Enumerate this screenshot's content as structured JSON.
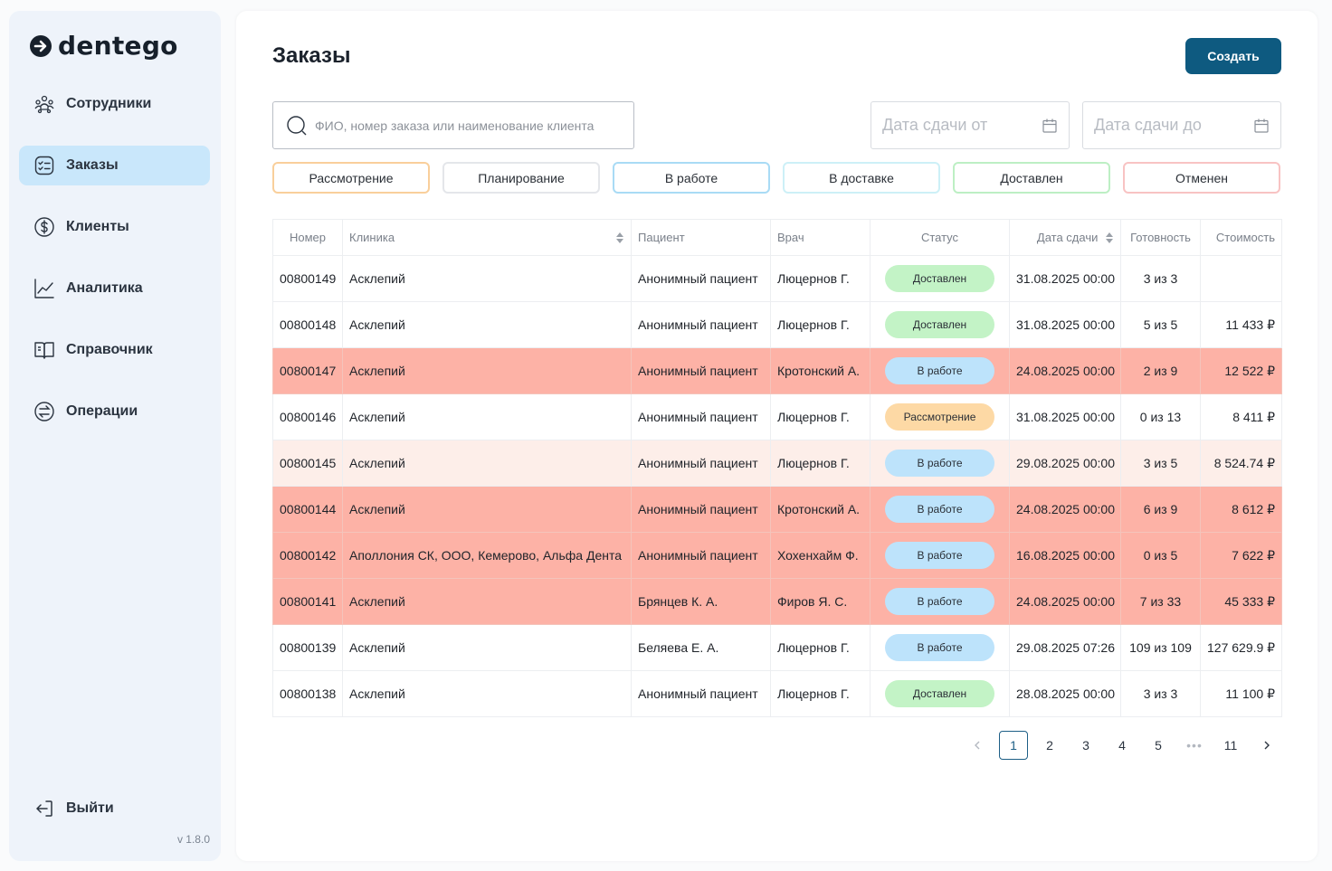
{
  "sidebar": {
    "logo_text": "dentego",
    "items": [
      {
        "label": "Сотрудники",
        "icon": "users-icon",
        "active": false
      },
      {
        "label": "Заказы",
        "icon": "checklist-icon",
        "active": true
      },
      {
        "label": "Клиенты",
        "icon": "dollar-icon",
        "active": false
      },
      {
        "label": "Аналитика",
        "icon": "chart-line-icon",
        "active": false
      },
      {
        "label": "Справочник",
        "icon": "book-icon",
        "active": false
      },
      {
        "label": "Операции",
        "icon": "operations-icon",
        "active": false
      }
    ],
    "logout_label": "Выйти",
    "version": "v 1.8.0"
  },
  "header": {
    "title": "Заказы",
    "create_label": "Создать"
  },
  "search": {
    "placeholder": "ФИО, номер заказа или наименование клиента",
    "value": ""
  },
  "dates": {
    "from_placeholder": "Дата сдачи от",
    "to_placeholder": "Дата сдачи до"
  },
  "filters": [
    {
      "label": "Рассмотрение",
      "color": "#f9cf9b"
    },
    {
      "label": "Планирование",
      "color": "#e4e6ea"
    },
    {
      "label": "В работе",
      "color": "#a9dbf5"
    },
    {
      "label": "В доставке",
      "color": "#cdf0f7"
    },
    {
      "label": "Доставлен",
      "color": "#bdefc4"
    },
    {
      "label": "Отменен",
      "color": "#f8c3c3"
    }
  ],
  "table": {
    "columns": [
      "Номер",
      "Клиника",
      "Пациент",
      "Врач",
      "Статус",
      "Дата сдачи",
      "Готовность",
      "Стоимость"
    ],
    "rows": [
      {
        "number": "00800149",
        "clinic": "Асклепий",
        "patient": "Анонимный пациент",
        "doctor": "Люцернов Г.",
        "status": "Доставлен",
        "date": "31.08.2025 00:00",
        "readiness": "3 из 3",
        "cost": "",
        "highlight": "white"
      },
      {
        "number": "00800148",
        "clinic": "Асклепий",
        "patient": "Анонимный пациент",
        "doctor": "Люцернов Г.",
        "status": "Доставлен",
        "date": "31.08.2025 00:00",
        "readiness": "5 из 5",
        "cost": "11 433 ₽",
        "highlight": "white"
      },
      {
        "number": "00800147",
        "clinic": "Асклепий",
        "patient": "Анонимный пациент",
        "doctor": "Кротонский А.",
        "status": "В работе",
        "date": "24.08.2025 00:00",
        "readiness": "2 из 9",
        "cost": "12 522 ₽",
        "highlight": "red"
      },
      {
        "number": "00800146",
        "clinic": "Асклепий",
        "patient": "Анонимный пациент",
        "doctor": "Люцернов Г.",
        "status": "Рассмотрение",
        "date": "31.08.2025 00:00",
        "readiness": "0 из 13",
        "cost": "8 411 ₽",
        "highlight": "white"
      },
      {
        "number": "00800145",
        "clinic": "Асклепий",
        "patient": "Анонимный пациент",
        "doctor": "Люцернов Г.",
        "status": "В работе",
        "date": "29.08.2025 00:00",
        "readiness": "3 из 5",
        "cost": "8 524.74 ₽",
        "highlight": "pink"
      },
      {
        "number": "00800144",
        "clinic": "Асклепий",
        "patient": "Анонимный пациент",
        "doctor": "Кротонский А.",
        "status": "В работе",
        "date": "24.08.2025 00:00",
        "readiness": "6 из 9",
        "cost": "8 612 ₽",
        "highlight": "red"
      },
      {
        "number": "00800142",
        "clinic": "Аполлония СК, ООО, Кемерово, Альфа Дента",
        "patient": "Анонимный пациент",
        "doctor": "Хохенхайм Ф.",
        "status": "В работе",
        "date": "16.08.2025 00:00",
        "readiness": "0 из 5",
        "cost": "7 622 ₽",
        "highlight": "red"
      },
      {
        "number": "00800141",
        "clinic": "Асклепий",
        "patient": "Брянцев К. А.",
        "doctor": "Фиров Я. С.",
        "status": "В работе",
        "date": "24.08.2025 00:00",
        "readiness": "7 из 33",
        "cost": "45 333 ₽",
        "highlight": "red"
      },
      {
        "number": "00800139",
        "clinic": "Асклепий",
        "patient": "Беляева Е. А.",
        "doctor": "Люцернов Г.",
        "status": "В работе",
        "date": "29.08.2025 07:26",
        "readiness": "109 из 109",
        "cost": "127 629.9 ₽",
        "highlight": "white"
      },
      {
        "number": "00800138",
        "clinic": "Асклепий",
        "patient": "Анонимный пациент",
        "doctor": "Люцернов Г.",
        "status": "Доставлен",
        "date": "28.08.2025 00:00",
        "readiness": "3 из 3",
        "cost": "11 100 ₽",
        "highlight": "white"
      }
    ]
  },
  "status_colors": {
    "Доставлен": "#c3f3c6",
    "В работе": "#bde3fb",
    "Рассмотрение": "#fdd9a5"
  },
  "pagination": {
    "pages": [
      "1",
      "2",
      "3",
      "4",
      "5"
    ],
    "ellipsis": "•••",
    "last": "11",
    "current": "1"
  }
}
